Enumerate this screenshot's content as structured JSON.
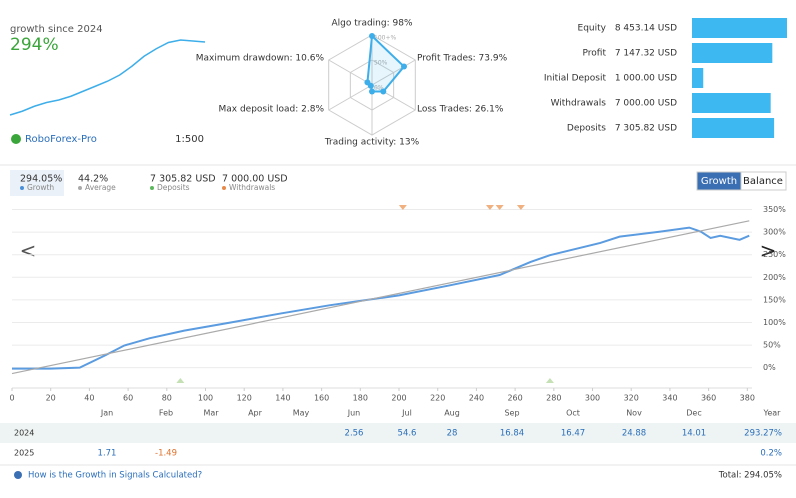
{
  "summary": {
    "label": "growth since 2024",
    "growth": "294%",
    "broker": "RoboForex-Pro",
    "leverage": "1:500",
    "sparkline": [
      0,
      15,
      35,
      50,
      60,
      75,
      95,
      115,
      135,
      160,
      195,
      235,
      265,
      290,
      300,
      296,
      292
    ]
  },
  "radar": {
    "axes": [
      {
        "label": "Algo trading: 98%",
        "value": 98
      },
      {
        "label": "Profit Trades: 73.9%",
        "value": 73.9
      },
      {
        "label": "Loss Trades: 26.1%",
        "value": 26.1
      },
      {
        "label": "Trading activity: 13%",
        "value": 13
      },
      {
        "label": "Max deposit load: 2.8%",
        "value": 2.8
      },
      {
        "label": "Maximum drawdown: 10.6%",
        "value": 10.6
      }
    ],
    "rings": [
      {
        "value": 100,
        "label": "100+%"
      },
      {
        "value": 50,
        "label": "50%"
      },
      {
        "value": 0,
        "label": "0%"
      }
    ],
    "color": "#3daee9"
  },
  "stats": {
    "color": "#3db8f0",
    "items": [
      {
        "label": "Equity",
        "value": 8453.14,
        "value_label": "8 453.14 USD"
      },
      {
        "label": "Profit",
        "value": 7147.32,
        "value_label": "7 147.32 USD"
      },
      {
        "label": "Initial Deposit",
        "value": 1000,
        "value_label": "1 000.00 USD"
      },
      {
        "label": "Withdrawals",
        "value": 7000,
        "value_label": "7 000.00 USD"
      },
      {
        "label": "Deposits",
        "value": 7305.82,
        "value_label": "7 305.82 USD"
      }
    ]
  },
  "tabs": [
    {
      "value": "294.05%",
      "label": "Growth",
      "color": "#4a90d9"
    },
    {
      "value": "44.2%",
      "label": "Average",
      "color": "#aaaaaa"
    },
    {
      "value": "7 305.82 USD",
      "label": "Deposits",
      "color": "#5cb85c"
    },
    {
      "value": "7 000.00 USD",
      "label": "Withdrawals",
      "color": "#e8894a"
    }
  ],
  "buttons": [
    "Growth",
    "Balance"
  ],
  "chart_data": {
    "type": "line",
    "series": [
      {
        "color": "#5b9be0",
        "x": [
          0,
          20,
          35,
          48,
          58,
          71,
          89,
          113,
          139,
          164,
          200,
          226,
          252,
          268,
          278,
          304,
          314,
          335,
          350,
          356,
          361,
          366,
          376,
          381
        ],
        "values": [
          -2,
          -2,
          0,
          27,
          49,
          65,
          82,
          100,
          120,
          138,
          160,
          182,
          205,
          234,
          249,
          276,
          290,
          301,
          310,
          301,
          287,
          292,
          283,
          292
        ]
      },
      {
        "color": "#aaaaaa",
        "x": [
          0,
          381
        ],
        "values": [
          -13,
          325
        ]
      }
    ],
    "deposit_markers": {
      "color": "#c5e0b4",
      "x": [
        87,
        278
      ]
    },
    "withdrawal_markers": {
      "color": "#f0b080",
      "x": [
        202,
        247,
        252,
        263
      ]
    },
    "xlim": [
      0,
      385
    ],
    "xticks": [
      0,
      20,
      40,
      60,
      80,
      100,
      120,
      140,
      160,
      180,
      200,
      220,
      240,
      260,
      280,
      300,
      320,
      340,
      360,
      380
    ],
    "ylim": [
      -45,
      360
    ],
    "yticks": [
      {
        "value": 0,
        "label": "0%"
      },
      {
        "value": 50,
        "label": "50%"
      },
      {
        "value": 100,
        "label": "100%"
      },
      {
        "value": 150,
        "label": "150%"
      },
      {
        "value": 200,
        "label": "200%"
      },
      {
        "value": 250,
        "label": "250%"
      },
      {
        "value": 300,
        "label": "300%"
      },
      {
        "value": 350,
        "label": "350%"
      }
    ],
    "grid": true
  },
  "table": {
    "columns": [
      "Jan",
      "Feb",
      "Mar",
      "Apr",
      "May",
      "Jun",
      "Jul",
      "Aug",
      "Sep",
      "Oct",
      "Nov",
      "Dec",
      "Year"
    ],
    "rows": [
      {
        "year": "2024",
        "cells": [
          null,
          null,
          null,
          null,
          null,
          2.56,
          54.6,
          28,
          16.84,
          16.47,
          24.88,
          14.01
        ],
        "total": "293.27%"
      },
      {
        "year": "2025",
        "cells": [
          1.71,
          -1.49,
          null,
          null,
          null,
          null,
          null,
          null,
          null,
          null,
          null,
          null
        ],
        "total": "0.2%"
      }
    ]
  },
  "footer": {
    "link": "How is the Growth in Signals Calculated?",
    "total": "Total: 294.05%"
  }
}
